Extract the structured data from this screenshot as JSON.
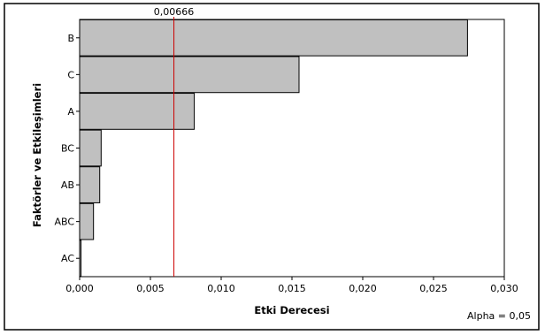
{
  "chart_data": {
    "type": "bar",
    "orientation": "horizontal",
    "categories": [
      "B",
      "C",
      "A",
      "BC",
      "AB",
      "ABC",
      "AC"
    ],
    "values": [
      0.0274,
      0.0155,
      0.0081,
      0.00152,
      0.00142,
      0.00098,
      0.0001
    ],
    "xlabel": "Etki Derecesi",
    "ylabel": "Faktörler ve Etkileşimleri",
    "xlim": [
      0,
      0.03
    ],
    "x_ticks": [
      0,
      0.005,
      0.01,
      0.015,
      0.02,
      0.025,
      0.03
    ],
    "x_tick_labels": [
      "0,000",
      "0,005",
      "0,010",
      "0,015",
      "0,020",
      "0,025",
      "0,030"
    ],
    "reference_line": {
      "value": 0.00666,
      "label": "0,00666",
      "color": "#cc0000"
    },
    "annotation": "Alpha = 0,05",
    "bar_color": "#c0c0c0",
    "grid": false
  }
}
